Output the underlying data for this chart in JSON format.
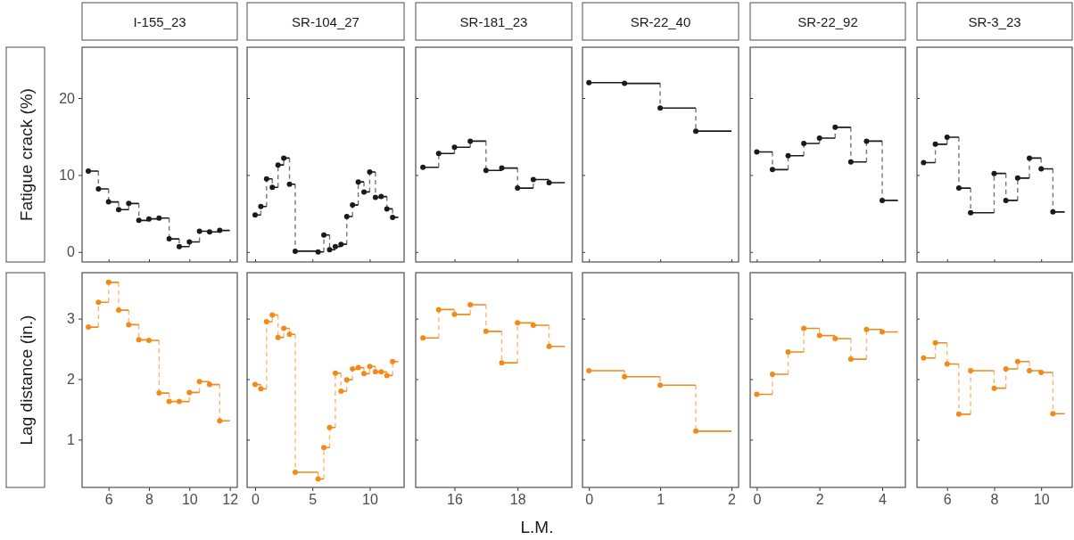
{
  "chart_data": [
    {
      "type": "step",
      "title": "I-155_23",
      "ylabel": "Fatigue crack (%)",
      "xlim": [
        4.69,
        12.37
      ],
      "xticks": [
        6,
        8,
        10,
        12
      ],
      "ylim": [
        -1.3,
        26.6
      ],
      "yticks": [
        0,
        10,
        20
      ],
      "tick_labels": "y",
      "series": [
        {
          "color": "#1a1a1a",
          "x": [
            5,
            5.5,
            6,
            6.5,
            7,
            7.5,
            8,
            8.5,
            9,
            9.5,
            10,
            10.5,
            11,
            11.5,
            12
          ],
          "values": [
            10.5,
            8.2,
            6.5,
            5.5,
            6.3,
            4.1,
            4.3,
            4.4,
            1.7,
            0.7,
            1.3,
            2.7,
            2.6,
            2.8,
            2.8
          ]
        },
        {
          "type": "scatter",
          "marker": "circle",
          "color": "#1a1a1a",
          "x": [
            5,
            5.5,
            6,
            6.5,
            7,
            7.5,
            8,
            8.5,
            9,
            9.5,
            10,
            10.5,
            11,
            11.5
          ],
          "values": [
            10.5,
            8.2,
            6.5,
            5.5,
            6.3,
            4.1,
            4.3,
            4.4,
            1.7,
            0.7,
            1.3,
            2.7,
            2.6,
            2.8
          ]
        }
      ]
    },
    {
      "type": "step",
      "title": "SR-104_27",
      "xlim": [
        -0.7,
        13.0
      ],
      "xticks": [
        0,
        5,
        10
      ],
      "ylim": [
        -1.3,
        26.6
      ],
      "yticks": [
        0,
        10,
        20
      ],
      "tick_labels": false,
      "series": [
        {
          "color": "#1a1a1a",
          "x": [
            0,
            0.5,
            1,
            1.5,
            2,
            2.5,
            3,
            3.5,
            5.5,
            6,
            6.5,
            7,
            7.5,
            8,
            8.5,
            9,
            9.5,
            10,
            10.5,
            11,
            11.5,
            12,
            12.5
          ],
          "values": [
            4.8,
            5.9,
            9.5,
            8.4,
            11.3,
            12.2,
            8.8,
            0.1,
            0.0,
            2.2,
            0.3,
            0.7,
            1.0,
            4.6,
            6.1,
            9.1,
            7.8,
            10.4,
            7.1,
            7.2,
            5.6,
            4.5,
            4.5
          ]
        },
        {
          "type": "scatter",
          "marker": "circle",
          "color": "#1a1a1a",
          "x": [
            0,
            0.5,
            1,
            1.5,
            2,
            2.5,
            3,
            3.5,
            5.5,
            6,
            6.5,
            7,
            7.5,
            8,
            8.5,
            9,
            9.5,
            10,
            10.5,
            11,
            11.5,
            12
          ],
          "values": [
            4.8,
            5.9,
            9.5,
            8.4,
            11.3,
            12.2,
            8.8,
            0.1,
            0.0,
            2.2,
            0.3,
            0.7,
            1.0,
            4.6,
            6.1,
            9.1,
            7.8,
            10.4,
            7.1,
            7.2,
            5.6,
            4.5
          ]
        }
      ]
    },
    {
      "type": "step",
      "title": "SR-181_23",
      "xlim": [
        14.77,
        19.72
      ],
      "xticks": [
        16,
        18
      ],
      "ylim": [
        -1.3,
        26.6
      ],
      "yticks": [
        0,
        10,
        20
      ],
      "tick_labels": false,
      "series": [
        {
          "color": "#1a1a1a",
          "x": [
            15,
            15.5,
            16,
            16.5,
            17,
            17.5,
            18,
            18.5,
            19,
            19.5
          ],
          "values": [
            11.0,
            12.8,
            13.6,
            14.4,
            10.6,
            10.9,
            8.3,
            9.4,
            9.0,
            9.0
          ]
        },
        {
          "type": "scatter",
          "marker": "circle",
          "color": "#1a1a1a",
          "x": [
            15,
            15.5,
            16,
            16.5,
            17,
            17.5,
            18,
            18.5,
            19
          ],
          "values": [
            11.0,
            12.8,
            13.6,
            14.4,
            10.6,
            10.9,
            8.3,
            9.4,
            9.0
          ]
        }
      ]
    },
    {
      "type": "step",
      "title": "SR-22_40",
      "xlim": [
        -0.09,
        2.1
      ],
      "xticks": [
        0,
        1,
        2
      ],
      "ylim": [
        -1.3,
        26.6
      ],
      "yticks": [
        0,
        10,
        20
      ],
      "tick_labels": false,
      "series": [
        {
          "color": "#1a1a1a",
          "x": [
            0,
            0.5,
            1,
            1.5,
            2
          ],
          "values": [
            22.0,
            21.9,
            18.7,
            15.7,
            15.7
          ]
        },
        {
          "type": "scatter",
          "marker": "circle",
          "color": "#1a1a1a",
          "x": [
            0,
            0.5,
            1,
            1.5
          ],
          "values": [
            22.0,
            21.9,
            18.7,
            15.7
          ]
        }
      ]
    },
    {
      "type": "step",
      "title": "SR-22_92",
      "xlim": [
        -0.21,
        4.74
      ],
      "xticks": [
        0,
        2,
        4
      ],
      "ylim": [
        -1.3,
        26.6
      ],
      "yticks": [
        0,
        10,
        20
      ],
      "tick_labels": false,
      "series": [
        {
          "color": "#1a1a1a",
          "x": [
            0,
            0.5,
            1,
            1.5,
            2,
            2.5,
            3,
            3.5,
            4,
            4.5
          ],
          "values": [
            13.0,
            10.7,
            12.5,
            14.1,
            14.8,
            16.2,
            11.7,
            14.4,
            6.7,
            6.7
          ]
        },
        {
          "type": "scatter",
          "marker": "circle",
          "color": "#1a1a1a",
          "x": [
            0,
            0.5,
            1,
            1.5,
            2,
            2.5,
            3,
            3.5,
            4
          ],
          "values": [
            13.0,
            10.7,
            12.5,
            14.1,
            14.8,
            16.2,
            11.7,
            14.4,
            6.7
          ]
        }
      ]
    },
    {
      "type": "step",
      "title": "SR-3_23",
      "xlim": [
        4.72,
        11.32
      ],
      "xticks": [
        6,
        8,
        10
      ],
      "ylim": [
        -1.3,
        26.6
      ],
      "yticks": [
        0,
        10,
        20
      ],
      "tick_labels": false,
      "series": [
        {
          "color": "#1a1a1a",
          "x": [
            5,
            5.5,
            6,
            6.5,
            7,
            8,
            8.5,
            9,
            9.5,
            10,
            10.5,
            11
          ],
          "values": [
            11.6,
            14.0,
            14.9,
            8.3,
            5.1,
            10.2,
            6.7,
            9.6,
            12.2,
            10.8,
            5.2,
            5.2
          ]
        },
        {
          "type": "scatter",
          "marker": "circle",
          "color": "#1a1a1a",
          "x": [
            5,
            5.5,
            6,
            6.5,
            7,
            8,
            8.5,
            9,
            9.5,
            10,
            10.5
          ],
          "values": [
            11.6,
            14.0,
            14.9,
            8.3,
            5.1,
            10.2,
            6.7,
            9.6,
            12.2,
            10.8,
            5.2
          ]
        }
      ]
    },
    {
      "type": "step",
      "ylabel": "Lag distance (in.)",
      "xlim": [
        4.69,
        12.37
      ],
      "xticks": [
        6,
        8,
        10,
        12
      ],
      "ylim": [
        0.21,
        3.76
      ],
      "yticks": [
        1,
        2,
        3
      ],
      "series": [
        {
          "color": "#f28a17",
          "x": [
            5,
            5.5,
            6,
            6.5,
            7,
            7.5,
            8,
            8.5,
            9,
            9.5,
            10,
            10.5,
            11,
            11.5,
            12
          ],
          "values": [
            2.86,
            3.27,
            3.6,
            3.14,
            2.9,
            2.65,
            2.64,
            1.77,
            1.63,
            1.63,
            1.78,
            1.96,
            1.91,
            1.31,
            1.31
          ]
        },
        {
          "type": "scatter",
          "marker": "circle",
          "color": "#f28a17",
          "x": [
            5,
            5.5,
            6,
            6.5,
            7,
            7.5,
            8,
            8.5,
            9,
            9.5,
            10,
            10.5,
            11,
            11.5
          ],
          "values": [
            2.86,
            3.27,
            3.6,
            3.14,
            2.9,
            2.65,
            2.64,
            1.77,
            1.63,
            1.63,
            1.78,
            1.96,
            1.91,
            1.31
          ]
        }
      ]
    },
    {
      "type": "step",
      "xlim": [
        -0.7,
        13.0
      ],
      "xticks": [
        0,
        5,
        10
      ],
      "ylim": [
        0.21,
        3.76
      ],
      "yticks": [
        1,
        2,
        3
      ],
      "tick_labels": "x",
      "series": [
        {
          "color": "#f28a17",
          "x": [
            0,
            0.5,
            1,
            1.5,
            2,
            2.5,
            3,
            3.5,
            5.5,
            6,
            6.5,
            7,
            7.5,
            8,
            8.5,
            9,
            9.5,
            10,
            10.5,
            11,
            11.5,
            12,
            12.5
          ],
          "values": [
            1.91,
            1.84,
            2.95,
            3.06,
            2.69,
            2.84,
            2.74,
            0.46,
            0.35,
            0.87,
            1.2,
            2.1,
            1.8,
            1.99,
            2.17,
            2.19,
            2.09,
            2.21,
            2.12,
            2.12,
            2.06,
            2.29,
            2.29
          ]
        },
        {
          "type": "scatter",
          "marker": "circle",
          "color": "#f28a17",
          "x": [
            0,
            0.5,
            1,
            1.5,
            2,
            2.5,
            3,
            3.5,
            5.5,
            6,
            6.5,
            7,
            7.5,
            8,
            8.5,
            9,
            9.5,
            10,
            10.5,
            11,
            11.5,
            12
          ],
          "values": [
            1.91,
            1.84,
            2.95,
            3.06,
            2.69,
            2.84,
            2.74,
            0.46,
            0.35,
            0.87,
            1.2,
            2.1,
            1.8,
            1.99,
            2.17,
            2.19,
            2.09,
            2.21,
            2.12,
            2.12,
            2.06,
            2.29
          ]
        }
      ]
    },
    {
      "type": "step",
      "xlabel": "L.M.",
      "xlim": [
        14.77,
        19.72
      ],
      "xticks": [
        16,
        18
      ],
      "ylim": [
        0.21,
        3.76
      ],
      "yticks": [
        1,
        2,
        3
      ],
      "tick_labels": "x",
      "series": [
        {
          "color": "#f28a17",
          "x": [
            15,
            15.5,
            16,
            16.5,
            17,
            17.5,
            18,
            18.5,
            19,
            19.5
          ],
          "values": [
            2.68,
            3.15,
            3.07,
            3.23,
            2.79,
            2.27,
            2.93,
            2.89,
            2.54,
            2.54
          ]
        },
        {
          "type": "scatter",
          "marker": "circle",
          "color": "#f28a17",
          "x": [
            15,
            15.5,
            16,
            16.5,
            17,
            17.5,
            18,
            18.5,
            19
          ],
          "values": [
            2.68,
            3.15,
            3.07,
            3.23,
            2.79,
            2.27,
            2.93,
            2.89,
            2.54
          ]
        }
      ]
    },
    {
      "type": "step",
      "xlim": [
        -0.09,
        2.1
      ],
      "xticks": [
        0,
        1,
        2
      ],
      "ylim": [
        0.21,
        3.76
      ],
      "yticks": [
        1,
        2,
        3
      ],
      "tick_labels": "x",
      "series": [
        {
          "color": "#f28a17",
          "x": [
            0,
            0.5,
            1,
            1.5,
            2
          ],
          "values": [
            2.14,
            2.04,
            1.9,
            1.14,
            1.14
          ]
        },
        {
          "type": "scatter",
          "marker": "circle",
          "color": "#f28a17",
          "x": [
            0,
            0.5,
            1,
            1.5
          ],
          "values": [
            2.14,
            2.04,
            1.9,
            1.14
          ]
        }
      ]
    },
    {
      "type": "step",
      "xlim": [
        -0.21,
        4.74
      ],
      "xticks": [
        0,
        2,
        4
      ],
      "ylim": [
        0.21,
        3.76
      ],
      "yticks": [
        1,
        2,
        3
      ],
      "tick_labels": "x",
      "series": [
        {
          "color": "#f28a17",
          "x": [
            0,
            0.5,
            1,
            1.5,
            2,
            2.5,
            3,
            3.5,
            4,
            4.5
          ],
          "values": [
            1.75,
            2.08,
            2.45,
            2.84,
            2.72,
            2.67,
            2.33,
            2.82,
            2.78,
            2.78
          ]
        },
        {
          "type": "scatter",
          "marker": "circle",
          "color": "#f28a17",
          "x": [
            0,
            0.5,
            1,
            1.5,
            2,
            2.5,
            3,
            3.5,
            4
          ],
          "values": [
            1.75,
            2.08,
            2.45,
            2.84,
            2.72,
            2.67,
            2.33,
            2.82,
            2.78
          ]
        }
      ]
    },
    {
      "type": "step",
      "xlim": [
        4.72,
        11.32
      ],
      "xticks": [
        6,
        8,
        10
      ],
      "ylim": [
        0.21,
        3.76
      ],
      "yticks": [
        1,
        2,
        3
      ],
      "tick_labels": "x",
      "series": [
        {
          "color": "#f28a17",
          "x": [
            5,
            5.5,
            6,
            6.5,
            7,
            8,
            8.5,
            9,
            9.5,
            10,
            10.5,
            11
          ],
          "values": [
            2.35,
            2.6,
            2.25,
            1.42,
            2.14,
            1.85,
            2.17,
            2.29,
            2.14,
            2.11,
            1.43,
            1.43
          ]
        },
        {
          "type": "scatter",
          "marker": "circle",
          "color": "#f28a17",
          "x": [
            5,
            5.5,
            6,
            6.5,
            7,
            8,
            8.5,
            9,
            9.5,
            10,
            10.5
          ],
          "values": [
            2.35,
            2.6,
            2.25,
            1.42,
            2.14,
            1.85,
            2.17,
            2.29,
            2.14,
            2.11,
            1.43
          ]
        }
      ]
    }
  ]
}
